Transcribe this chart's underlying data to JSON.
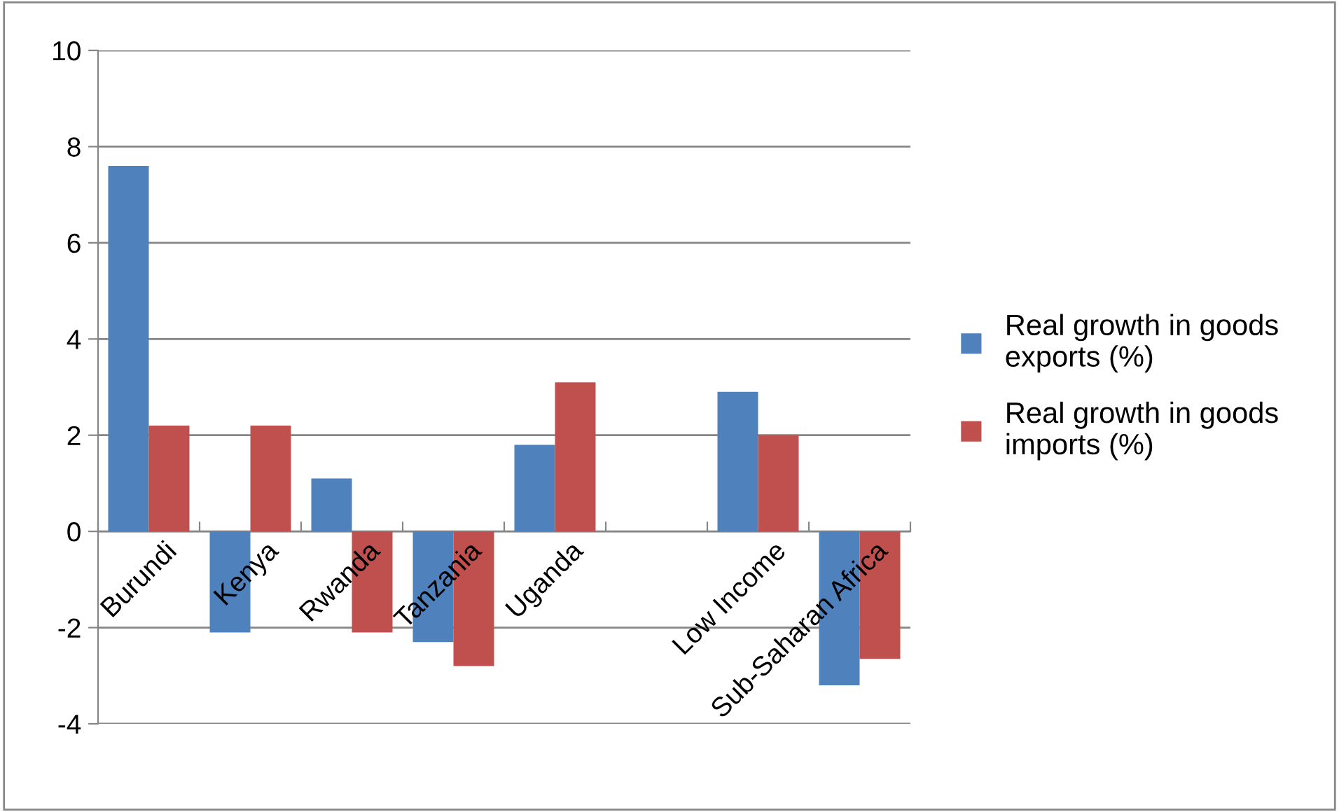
{
  "chart_data": {
    "type": "bar",
    "categories": [
      "Burundi",
      "Kenya",
      "Rwanda",
      "Tanzania",
      "Uganda",
      null,
      "Low Income",
      "Sub-Saharan Africa"
    ],
    "series": [
      {
        "name": "Real growth in goods exports (%)",
        "color": "#4f81bd",
        "values": [
          7.6,
          -2.1,
          1.1,
          -2.3,
          1.8,
          null,
          2.9,
          -3.2
        ]
      },
      {
        "name": "Real growth in goods imports (%)",
        "color": "#c0504d",
        "values": [
          2.2,
          2.2,
          -2.1,
          -2.8,
          3.1,
          null,
          2.0,
          -2.65
        ]
      }
    ],
    "ylim": [
      -4,
      10
    ],
    "yticks": [
      -4,
      -2,
      0,
      2,
      4,
      6,
      8,
      10
    ],
    "grid": "y",
    "legend": "right"
  }
}
